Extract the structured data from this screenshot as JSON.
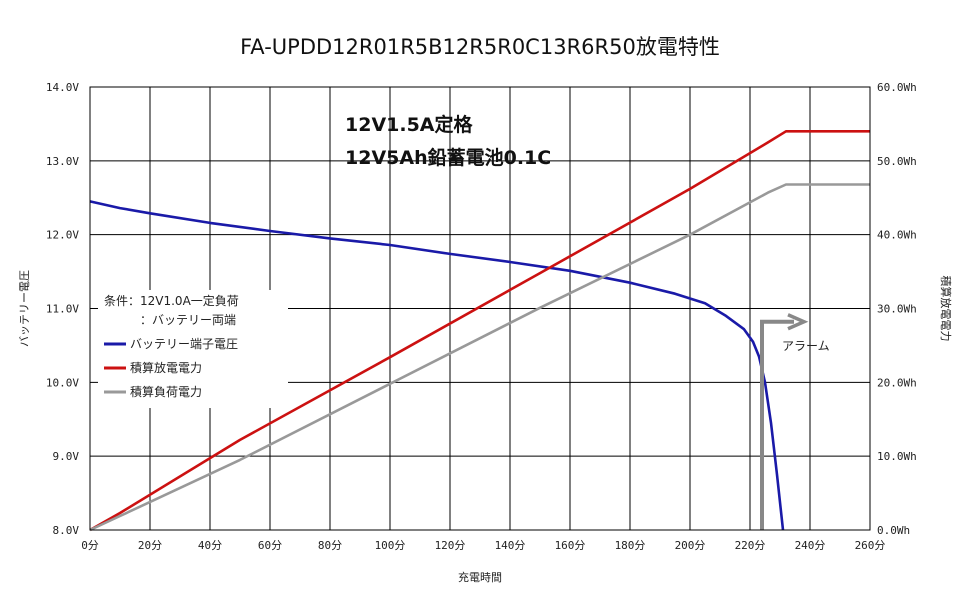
{
  "chart_data": {
    "type": "line",
    "title": "FA-UPDD12R01R5B12R5R0C13R6R50放電特性",
    "xlabel": "充電時間",
    "ylabel_left": "バッテリー電圧",
    "ylabel_right": "積算放電電力",
    "x_ticks": [
      "0分",
      "20分",
      "40分",
      "60分",
      "80分",
      "100分",
      "120分",
      "140分",
      "160分",
      "180分",
      "200分",
      "220分",
      "240分",
      "260分"
    ],
    "y_left_ticks": [
      "8.0V",
      "9.0V",
      "10.0V",
      "11.0V",
      "12.0V",
      "13.0V",
      "14.0V"
    ],
    "y_right_ticks": [
      "0.0Wh",
      "10.0Wh",
      "20.0Wh",
      "30.0Wh",
      "40.0Wh",
      "50.0Wh",
      "60.0Wh"
    ],
    "xlim": [
      0,
      260
    ],
    "ylim_left": [
      8.0,
      14.0
    ],
    "ylim_right": [
      0,
      60
    ],
    "grid": true,
    "legend_position": "left",
    "annotations": {
      "spec_line1": "12V1.5A定格",
      "spec_line2": "12V5Ah鉛蓄電池0.1C",
      "condition_line1": "条件：12V1.0A一定負荷",
      "condition_line2": "：バッテリー両端",
      "alarm_label": "アラーム"
    },
    "alarm": {
      "x": 224,
      "arrow_y_wh": 28.2,
      "arrow_end_x": 238
    },
    "series": [
      {
        "name": "バッテリー端子電圧",
        "axis": "left",
        "color": "#1a1aa8",
        "x": [
          0,
          10,
          20,
          40,
          60,
          80,
          100,
          120,
          140,
          160,
          180,
          195,
          205,
          212,
          218,
          221,
          223,
          225,
          227,
          229,
          231
        ],
        "y": [
          12.45,
          12.36,
          12.29,
          12.16,
          12.05,
          11.95,
          11.86,
          11.74,
          11.63,
          11.51,
          11.35,
          11.2,
          11.07,
          10.9,
          10.72,
          10.55,
          10.35,
          10.0,
          9.45,
          8.75,
          8.0
        ]
      },
      {
        "name": "積算放電電力",
        "axis": "right",
        "color": "#cc1111",
        "x": [
          0,
          10,
          50,
          100,
          150,
          200,
          226,
          232,
          260
        ],
        "y": [
          0,
          2.3,
          12.2,
          23.4,
          34.8,
          46.2,
          52.5,
          54.0,
          54.0
        ]
      },
      {
        "name": "積算負荷電力",
        "axis": "right",
        "color": "#999999",
        "x": [
          0,
          10,
          50,
          100,
          150,
          200,
          226,
          232,
          260
        ],
        "y": [
          0,
          1.9,
          9.5,
          19.8,
          30.1,
          40.0,
          45.7,
          46.8,
          46.8
        ]
      }
    ]
  }
}
